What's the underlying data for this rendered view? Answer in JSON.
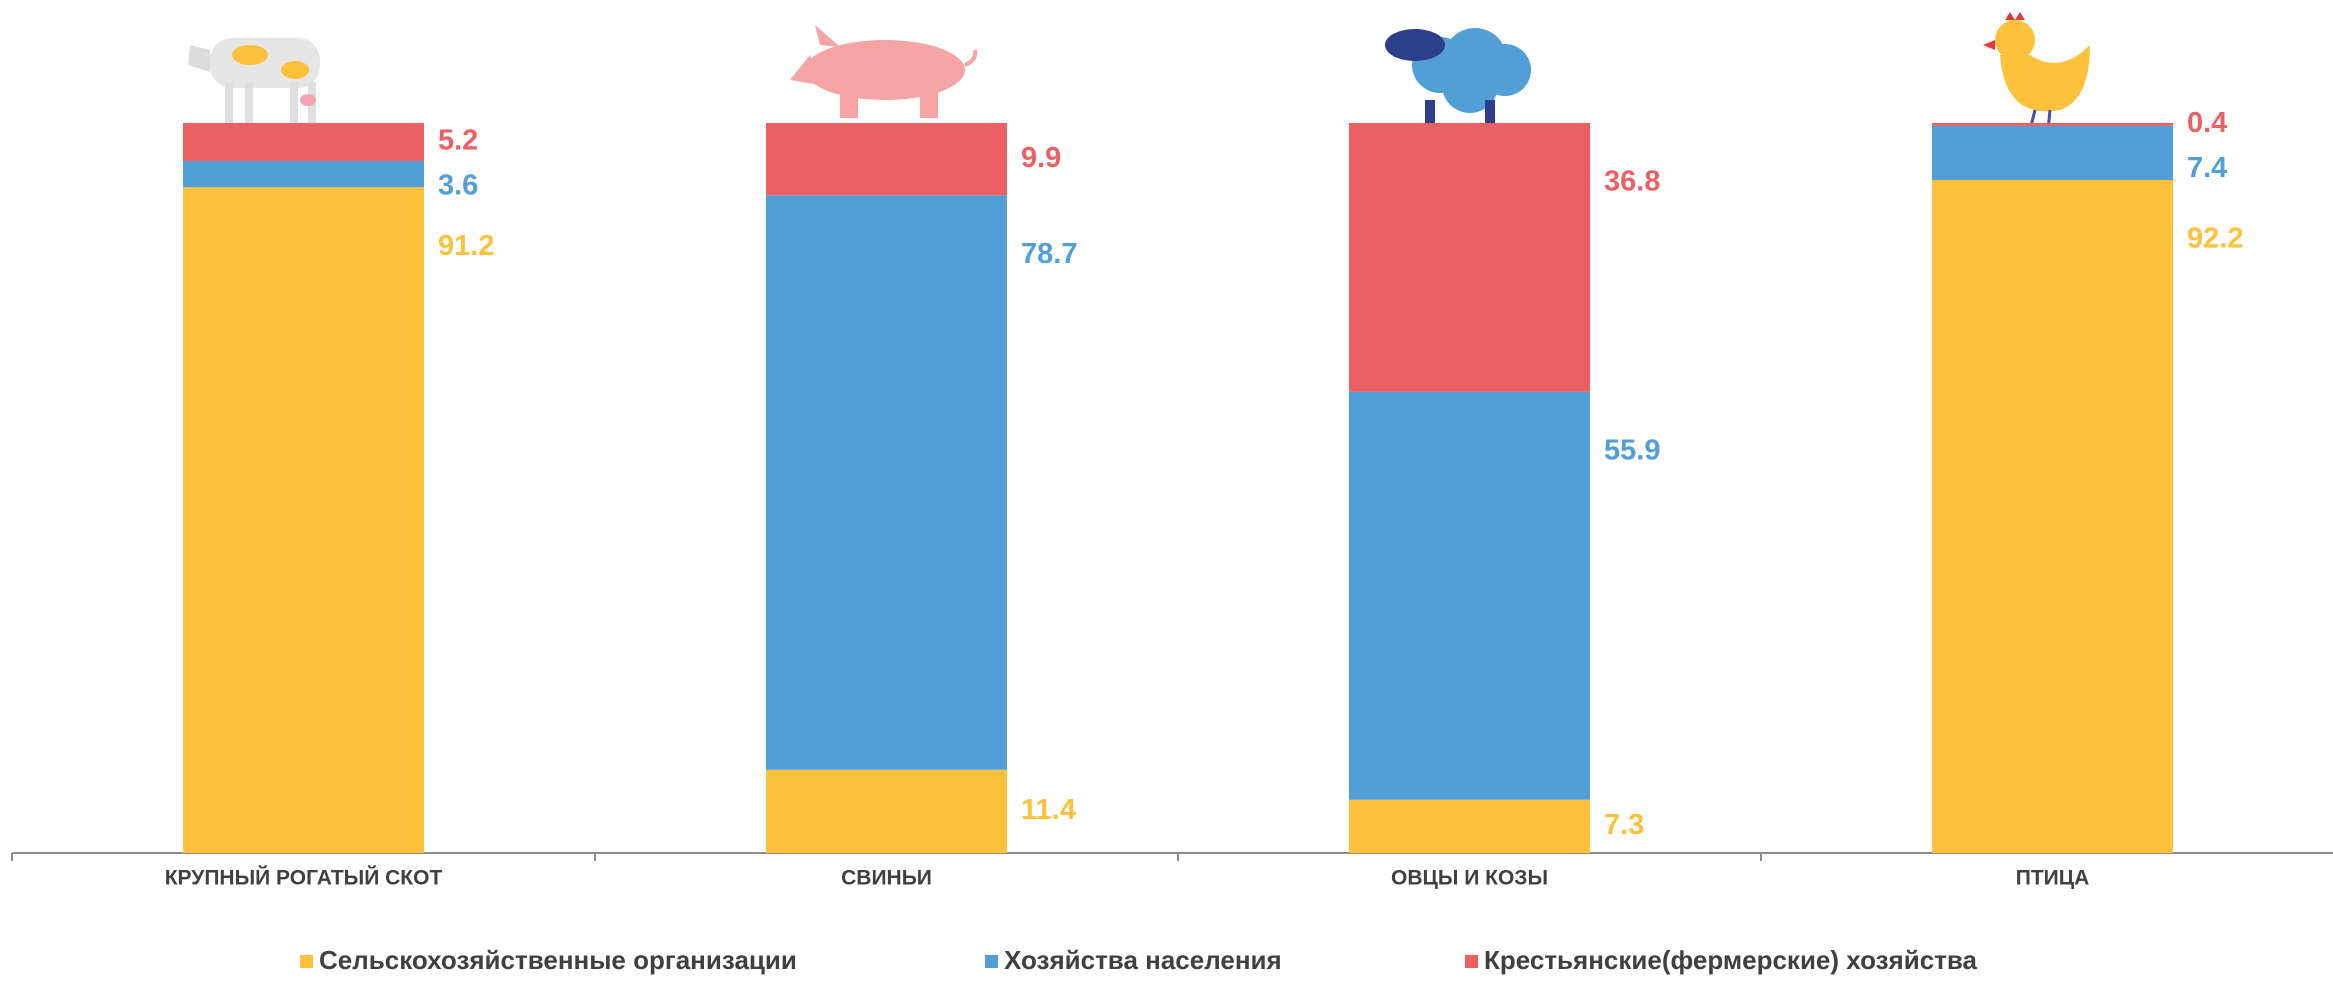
{
  "chart_data": {
    "type": "stacked_bar",
    "categories": [
      "КРУПНЫЙ РОГАТЫЙ СКОТ",
      "СВИНЬИ",
      "ОВЦЫ И КОЗЫ",
      "ПТИЦА"
    ],
    "series": [
      {
        "name": "Сельскохозяйственные организации",
        "color": "#FFC13B",
        "values": [
          91.2,
          11.4,
          7.3,
          92.2
        ]
      },
      {
        "name": "Хозяйства населения",
        "color": "#529FD8",
        "values": [
          3.6,
          78.7,
          55.9,
          7.4
        ]
      },
      {
        "name": "Крестьянские(фермерские) хозяйства",
        "color": "#EC6064",
        "values": [
          5.2,
          9.9,
          36.8,
          0.4
        ]
      }
    ],
    "ylim": [
      0,
      100
    ]
  }
}
